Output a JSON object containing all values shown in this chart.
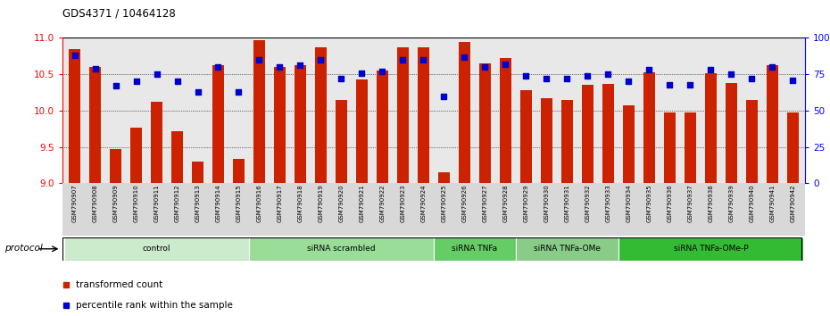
{
  "title": "GDS4371 / 10464128",
  "sample_labels": [
    "GSM790907",
    "GSM790908",
    "GSM790909",
    "GSM790910",
    "GSM790911",
    "GSM790912",
    "GSM790913",
    "GSM790914",
    "GSM790915",
    "GSM790916",
    "GSM790917",
    "GSM790918",
    "GSM790919",
    "GSM790920",
    "GSM790921",
    "GSM790922",
    "GSM790923",
    "GSM790924",
    "GSM790925",
    "GSM790926",
    "GSM790927",
    "GSM790928",
    "GSM790929",
    "GSM790930",
    "GSM790931",
    "GSM790932",
    "GSM790933",
    "GSM790934",
    "GSM790935",
    "GSM790936",
    "GSM790937",
    "GSM790938",
    "GSM790939",
    "GSM790940",
    "GSM790941",
    "GSM790942"
  ],
  "bar_values": [
    10.85,
    10.6,
    9.47,
    9.77,
    10.12,
    9.72,
    9.3,
    10.63,
    9.33,
    10.97,
    10.6,
    10.63,
    10.87,
    10.15,
    10.43,
    10.55,
    10.87,
    10.87,
    9.15,
    10.95,
    10.65,
    10.72,
    10.28,
    10.17,
    10.15,
    10.35,
    10.37,
    10.07,
    10.53,
    9.98,
    9.97,
    10.52,
    10.38,
    10.15,
    10.62,
    9.97
  ],
  "percentile_values": [
    88,
    79,
    67,
    70,
    75,
    70,
    63,
    80,
    63,
    85,
    80,
    81,
    85,
    72,
    76,
    77,
    85,
    85,
    60,
    87,
    80,
    82,
    74,
    72,
    72,
    74,
    75,
    70,
    78,
    68,
    68,
    78,
    75,
    72,
    80,
    71
  ],
  "groups": [
    {
      "label": "control",
      "start": 0,
      "end": 9,
      "color": "#cceacc"
    },
    {
      "label": "siRNA scrambled",
      "start": 9,
      "end": 18,
      "color": "#99dd99"
    },
    {
      "label": "siRNA TNFa",
      "start": 18,
      "end": 22,
      "color": "#66cc66"
    },
    {
      "label": "siRNA TNFa-OMe",
      "start": 22,
      "end": 27,
      "color": "#88cc88"
    },
    {
      "label": "siRNA TNFa-OMe-P",
      "start": 27,
      "end": 36,
      "color": "#33bb33"
    }
  ],
  "ylim_left": [
    9.0,
    11.0
  ],
  "ylim_right": [
    0,
    100
  ],
  "yticks_left": [
    9.0,
    9.5,
    10.0,
    10.5,
    11.0
  ],
  "yticks_right": [
    0,
    25,
    50,
    75,
    100
  ],
  "yticklabels_right": [
    "0",
    "25",
    "50",
    "75",
    "100%"
  ],
  "bar_color": "#cc2200",
  "percentile_color": "#0000cc",
  "bar_width": 0.55
}
